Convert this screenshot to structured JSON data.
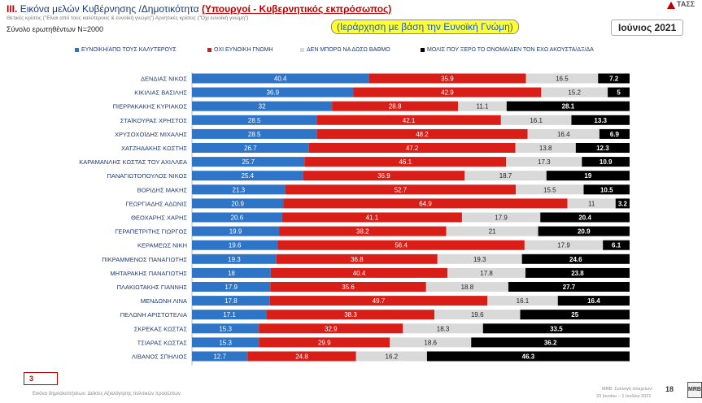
{
  "header": {
    "roman": "III.",
    "title": "Εικόνα μελών Κυβέρνησης /Δημοτικότητα",
    "subtitle": "(Υπουργοί - Κυβερνητικός εκπρόσωπος)",
    "note": "Θετικές κρίσεις (\"Είναι από τους καλύτερους & ευνοϊκή γνώμη\")   Αρνητικές κρίσεις (\"Όχι ευνοϊκή γνώμη\")",
    "sample": "Σύνολο ερωτηθέντων Ν=2000",
    "sort_note": "(Ιεράρχηση με βάση την Ευνοϊκή Γνώμη)",
    "month": "Ιούνιος 2021",
    "logo_text": "ΤΑΣΣ"
  },
  "colors": {
    "favorable": "#2e75c8",
    "unfavorable": "#d91e18",
    "cannot_rate": "#d9d9d9",
    "unknown": "#000000"
  },
  "chart_data": {
    "type": "bar",
    "stacked": true,
    "orientation": "horizontal",
    "categories": [
      "ΔΕΝΔΙΑΣ ΝΙΚΟΣ",
      "ΚΙΚΙΛΙΑΣ ΒΑΣΙΛΗΣ",
      "ΠΙΕΡΡΑΚΑΚΗΣ ΚΥΡΙΑΚΟΣ",
      "ΣΤΑΪΚΟΥΡΑΣ ΧΡΗΣΤΟΣ",
      "ΧΡΥΣΟΧΟΪΔΗΣ ΜΙΧΑΛΗΣ",
      "ΧΑΤΖΗΔΑΚΗΣ ΚΩΣΤΗΣ",
      "ΚΑΡΑΜΑΝΛΗΣ ΚΩΣΤΑΣ ΤΟΥ ΑΧΙΛΛΕΑ",
      "ΠΑΝΑΓΙΩΤΟΠΟΥΛΟΣ ΝΙΚΟΣ",
      "ΒΟΡΙΔΗΣ ΜΑΚΗΣ",
      "ΓΕΩΡΓΙΑΔΗΣ ΑΔΩΝΙΣ",
      "ΘΕΟΧΑΡΗΣ ΧΑΡΗΣ",
      "ΓΕΡΑΠΕΤΡΙΤΗΣ ΓΙΩΡΓΟΣ",
      "ΚΕΡΑΜΕΩΣ ΝΙΚΗ",
      "ΠΙΚΡΑΜΜΕΝΟΣ ΠΑΝΑΓΙΩΤΗΣ",
      "ΜΗΤΑΡΑΚΗΣ ΠΑΝΑΓΙΩΤΗΣ",
      "ΠΛΑΚΙΩΤΑΚΗΣ ΓΙΑΝΝΗΣ",
      "ΜΕΝΔΩΝΗ ΛΙΝΑ",
      "ΠΕΛΩΝΗ ΑΡΙΣΤΟΤΕΛΙΑ",
      "ΣΚΡΕΚΑΣ ΚΩΣΤΑΣ",
      "ΤΣΙΑΡΑΣ ΚΩΣΤΑΣ",
      "ΛΙΒΑΝΟΣ ΣΠΗΛΙΟΣ"
    ],
    "series": [
      {
        "name": "ΕΥΝΟΙΚΗ/ΑΠΟ ΤΟΥΣ ΚΑΛΥΤΕΡΟΥΣ",
        "color": "#2e75c8",
        "values": [
          40.4,
          36.9,
          32,
          28.5,
          28.5,
          26.7,
          25.7,
          25.4,
          21.3,
          20.9,
          20.6,
          19.9,
          19.6,
          19.3,
          18,
          17.9,
          17.8,
          17.1,
          15.3,
          15.3,
          12.7
        ]
      },
      {
        "name": "ΟΧΙ ΕΥΝΟΙΚΗ ΓΝΩΜΗ",
        "color": "#d91e18",
        "values": [
          35.9,
          42.9,
          28.8,
          42.1,
          48.2,
          47.2,
          46.1,
          36.9,
          52.7,
          64.9,
          41.1,
          38.2,
          56.4,
          36.8,
          40.4,
          35.6,
          49.7,
          38.3,
          32.9,
          29.9,
          24.8
        ]
      },
      {
        "name": "ΔΕΝ ΜΠΟΡΩ ΝΑ ΔΩΣΩ ΒΑΘΜΟ",
        "color": "#d9d9d9",
        "values": [
          16.5,
          15.2,
          11.1,
          16.1,
          16.4,
          13.8,
          17.3,
          18.7,
          15.5,
          11,
          17.9,
          21,
          17.9,
          19.3,
          17.8,
          18.8,
          16.1,
          19.6,
          18.3,
          18.6,
          16.2
        ]
      },
      {
        "name": "ΜΟΛΙΣ ΠΟΥ ΞΕΡΩ ΤΟ ΟΝΟΜΑ/ΔΕΝ ΤΟΝ ΕΧΩ ΑΚΟΥΣΤΑ/ΔΞ/ΔΑ",
        "color": "#000000",
        "values": [
          7.2,
          5,
          28.1,
          13.3,
          6.9,
          12.3,
          10.9,
          19,
          10.5,
          3.2,
          20.4,
          20.9,
          6.1,
          24.6,
          23.8,
          27.7,
          16.4,
          25,
          33.5,
          36.2,
          46.3
        ]
      }
    ],
    "xlim": [
      0,
      100
    ]
  },
  "footer": {
    "page_box": "3",
    "note": "Εικόνα δημοσκοπήσεων: Δείκτες Αξιολόγησης πολιτικών προσώπων",
    "source_1": "MRB: Συλλογή στοιχείων:",
    "source_2": "23 Ιουνίου – 1 Ιουλίου 2021",
    "page_number": "18",
    "mrb_logo": "MRB"
  }
}
